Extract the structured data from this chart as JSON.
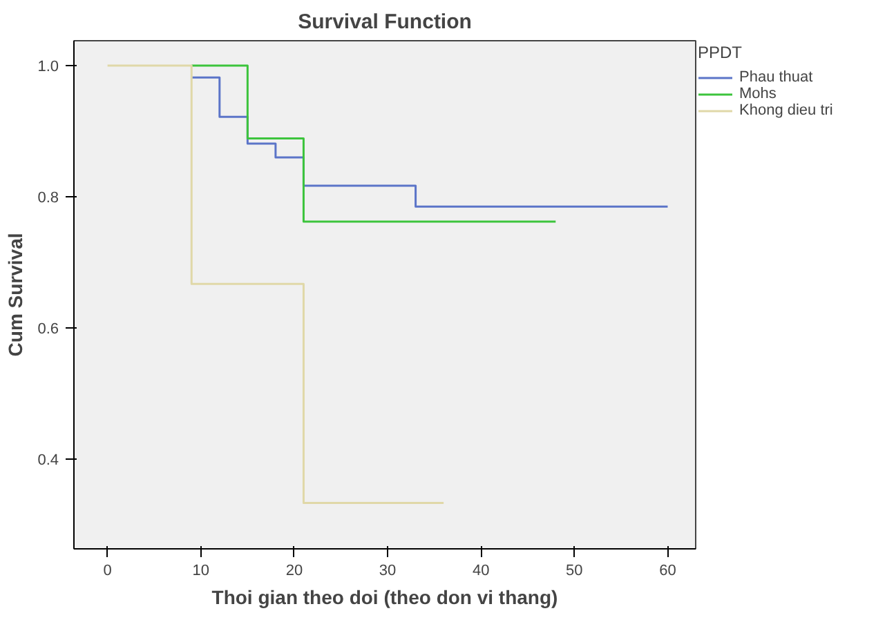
{
  "chart_data": {
    "type": "step",
    "title": "Survival Function",
    "xlabel": "Thoi gian theo doi (theo don vi thang)",
    "ylabel": "Cum Survival",
    "legend_title": "PPDT",
    "xlim": [
      -3.6,
      63
    ],
    "xticks": [
      0,
      10,
      20,
      30,
      40,
      50,
      60
    ],
    "ylim": [
      0.263,
      1.038
    ],
    "yticks": [
      0.4,
      0.6,
      0.8,
      {
        "value": 1.0,
        "label": "1.0"
      }
    ],
    "grid": false,
    "legend": "top right",
    "line_style": "solid",
    "series": [
      {
        "name": "Phau thuat",
        "color": "#5b74c8",
        "x": [
          9,
          12,
          15,
          18,
          21,
          33,
          60
        ],
        "values": [
          0.982,
          0.922,
          0.881,
          0.86,
          0.817,
          0.785,
          0.785
        ]
      },
      {
        "name": "Mohs",
        "color": "#3cc43c",
        "x": [
          9,
          15,
          21,
          48
        ],
        "values": [
          1.0,
          0.889,
          0.762,
          0.762
        ]
      },
      {
        "name": "Khong dieu tri",
        "color": "#e0d8a8",
        "x": [
          0,
          9,
          21,
          36
        ],
        "values": [
          1.0,
          0.667,
          0.333,
          0.333
        ]
      }
    ]
  }
}
